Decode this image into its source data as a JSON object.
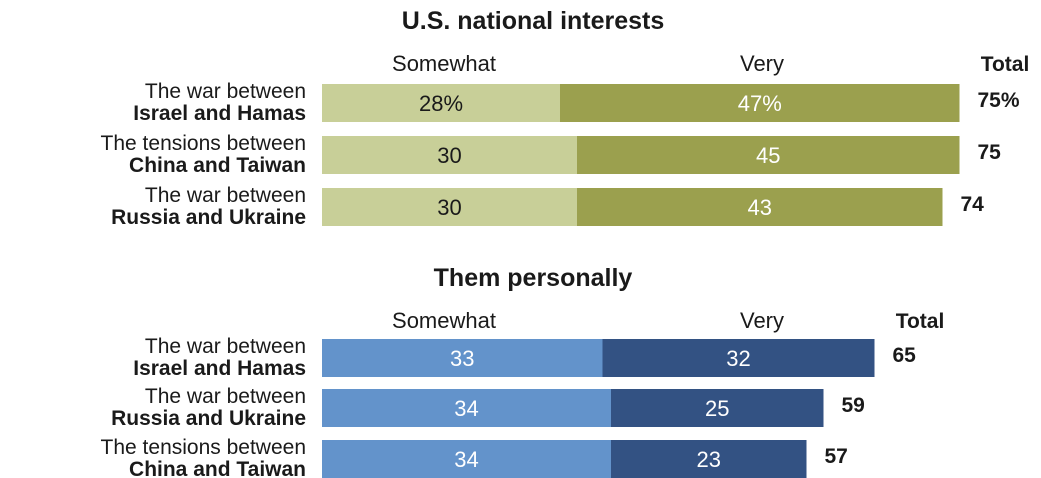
{
  "chart_data": [
    {
      "type": "bar",
      "stacked": true,
      "orientation": "horizontal",
      "title": "U.S. national interests",
      "column_headers": {
        "somewhat": "Somewhat",
        "very": "Very",
        "total": "Total"
      },
      "categories": [
        [
          "The war between",
          "Israel and Hamas"
        ],
        [
          "The tensions between",
          "China and Taiwan"
        ],
        [
          "The war between",
          "Russia and Ukraine"
        ]
      ],
      "series": [
        {
          "name": "Somewhat",
          "values": [
            28,
            30,
            30
          ],
          "labels": [
            "28%",
            "30",
            "30"
          ],
          "color": "#c8cf98"
        },
        {
          "name": "Very",
          "values": [
            47,
            45,
            43
          ],
          "labels": [
            "47%",
            "45",
            "43"
          ],
          "color": "#9ba04e"
        }
      ],
      "totals": [
        75,
        75,
        74
      ],
      "total_labels": [
        "75%",
        "75",
        "74"
      ],
      "somewhat_text_color": "#1a1a1a",
      "very_text_color": "#ffffff"
    },
    {
      "type": "bar",
      "stacked": true,
      "orientation": "horizontal",
      "title": "Them personally",
      "column_headers": {
        "somewhat": "Somewhat",
        "very": "Very",
        "total": "Total"
      },
      "categories": [
        [
          "The war between",
          "Israel and Hamas"
        ],
        [
          "The war between",
          "Russia and Ukraine"
        ],
        [
          "The tensions between",
          "China and Taiwan"
        ]
      ],
      "series": [
        {
          "name": "Somewhat",
          "values": [
            33,
            34,
            34
          ],
          "labels": [
            "33",
            "34",
            "34"
          ],
          "color": "#6393cb"
        },
        {
          "name": "Very",
          "values": [
            32,
            25,
            23
          ],
          "labels": [
            "32",
            "25",
            "23"
          ],
          "color": "#335283"
        }
      ],
      "totals": [
        65,
        59,
        57
      ],
      "total_labels": [
        "65",
        "59",
        "57"
      ],
      "somewhat_text_color": "#ffffff",
      "very_text_color": "#ffffff"
    }
  ]
}
